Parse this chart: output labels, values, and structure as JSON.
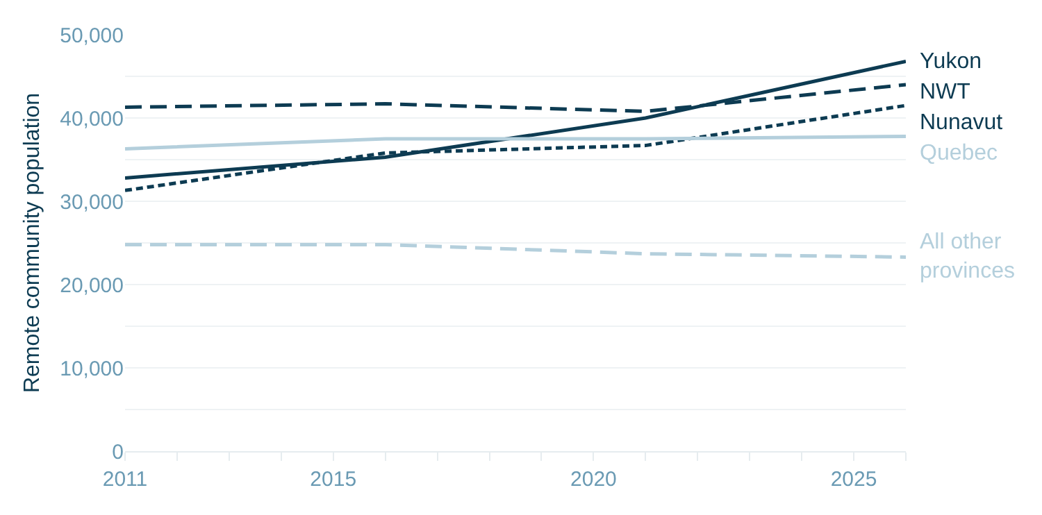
{
  "chart_data": {
    "type": "line",
    "ylabel": "Remote community population",
    "x": [
      2011,
      2016,
      2021,
      2026
    ],
    "series": [
      {
        "name": "Yukon",
        "color": "#0d3b52",
        "line_style": "solid",
        "values": [
          32800,
          35300,
          40000,
          46800
        ]
      },
      {
        "name": "NWT",
        "color": "#0d3b52",
        "line_style": "dashed",
        "values": [
          41300,
          41700,
          40800,
          44000
        ]
      },
      {
        "name": "Nunavut",
        "color": "#0d3b52",
        "line_style": "dotted",
        "values": [
          31300,
          35800,
          36700,
          41500
        ]
      },
      {
        "name": "Quebec",
        "color": "#b4cfdc",
        "line_style": "solid",
        "values": [
          36300,
          37500,
          37500,
          37800
        ]
      },
      {
        "name": "All other provinces",
        "color": "#b4cfdc",
        "line_style": "dashed",
        "values": [
          24800,
          24800,
          23700,
          23300
        ]
      }
    ],
    "xlim": [
      2011,
      2026
    ],
    "xticks": [
      2011,
      {
        "value": 2012,
        "label": null
      },
      {
        "value": 2013,
        "label": null
      },
      {
        "value": 2014,
        "label": null
      },
      2015,
      {
        "value": 2016,
        "label": null
      },
      {
        "value": 2017,
        "label": null
      },
      {
        "value": 2018,
        "label": null
      },
      {
        "value": 2019,
        "label": null
      },
      2020,
      {
        "value": 2021,
        "label": null
      },
      {
        "value": 2022,
        "label": null
      },
      {
        "value": 2023,
        "label": null
      },
      {
        "value": 2024,
        "label": null
      },
      2025,
      {
        "value": 2026,
        "label": null
      }
    ],
    "ylim": [
      0,
      50000
    ],
    "yticks": [
      {
        "value": 0,
        "label": "0"
      },
      {
        "value": 5000,
        "label": null
      },
      {
        "value": 10000,
        "label": "10,000"
      },
      {
        "value": 15000,
        "label": null
      },
      {
        "value": 20000,
        "label": "20,000"
      },
      {
        "value": 25000,
        "label": null
      },
      {
        "value": 30000,
        "label": "30,000"
      },
      {
        "value": 35000,
        "label": null
      },
      {
        "value": 40000,
        "label": "40,000"
      },
      {
        "value": 45000,
        "label": null
      },
      {
        "value": 50000,
        "label": "50,000"
      }
    ],
    "grid": "y",
    "legend": false
  }
}
